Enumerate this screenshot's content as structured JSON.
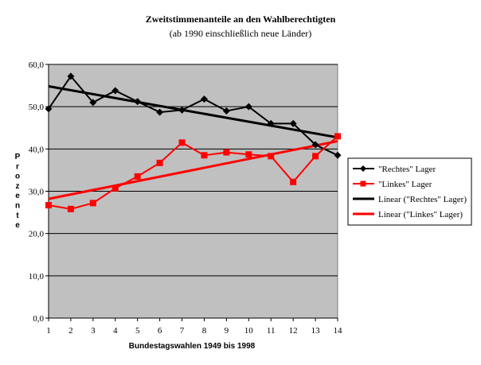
{
  "chart_data": {
    "type": "line",
    "title": "Zweitstimmenanteile an den Wahlberechtigten",
    "subtitle": "(ab 1990 einschließlich neue Länder)",
    "xlabel": "Bundestagswahlen 1949 bis 1998",
    "ylabel": "Prozente",
    "x": [
      1,
      2,
      3,
      4,
      5,
      6,
      7,
      8,
      9,
      10,
      11,
      12,
      13,
      14
    ],
    "x_tick_labels": [
      "1",
      "2",
      "3",
      "4",
      "5",
      "6",
      "7",
      "8",
      "9",
      "10",
      "11",
      "12",
      "13",
      "14"
    ],
    "y_tick_labels": [
      "0,0",
      "10,0",
      "20,0",
      "30,0",
      "40,0",
      "50,0",
      "60,0"
    ],
    "y_ticks": [
      0,
      10,
      20,
      30,
      40,
      50,
      60
    ],
    "ylim": [
      0,
      60
    ],
    "grid": "horizontal",
    "plot_background": "#c0c0c0",
    "legend_position": "right",
    "series": [
      {
        "name": "\"Rechtes\" Lager",
        "color": "#000000",
        "marker": "diamond",
        "values": [
          49.5,
          57.2,
          51.0,
          53.8,
          51.2,
          48.7,
          49.2,
          51.8,
          49.0,
          50.0,
          46.0,
          46.0,
          41.0,
          38.5
        ]
      },
      {
        "name": "\"Linkes\" Lager",
        "color": "#ff0000",
        "marker": "square",
        "values": [
          26.7,
          25.8,
          27.2,
          30.7,
          33.5,
          36.7,
          41.5,
          38.5,
          39.2,
          38.7,
          38.3,
          32.2,
          38.3,
          43.0
        ]
      }
    ],
    "trendlines": [
      {
        "name": "Linear (\"Rechtes\" Lager)",
        "color": "#000000",
        "series": 0,
        "type": "linear"
      },
      {
        "name": "Linear (\"Linkes\" Lager)",
        "color": "#ff0000",
        "series": 1,
        "type": "linear"
      }
    ]
  }
}
